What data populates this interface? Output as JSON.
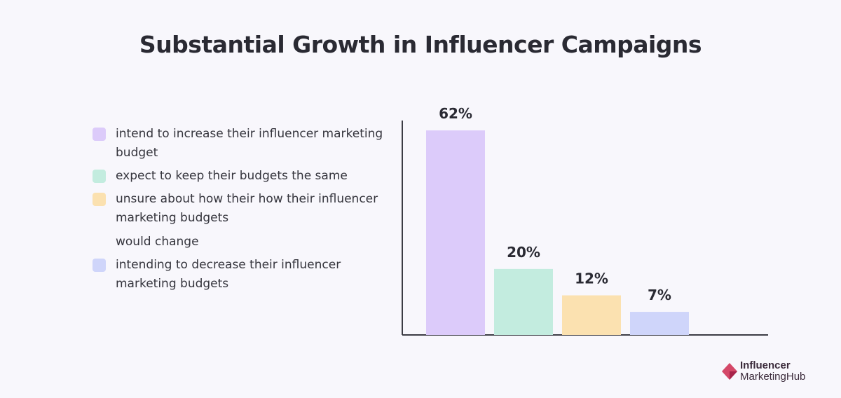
{
  "chart_data": {
    "type": "bar",
    "title": "Substantial Growth in Influencer Campaigns",
    "categories": [
      "intend to increase their influencer marketing budget",
      "expect to keep their budgets the same",
      "unsure about how their how their influencer marketing budgets would change",
      "intending to decrease their influencer marketing budgets"
    ],
    "values": [
      62,
      20,
      12,
      7
    ],
    "value_labels": [
      "62%",
      "20%",
      "12%",
      "7%"
    ],
    "colors": [
      "#dccbfa",
      "#c3ecdf",
      "#fbe1b0",
      "#cfd5fa"
    ],
    "ylim": [
      0,
      65
    ],
    "grid": false,
    "legend_placement": "left"
  },
  "legend": {
    "items": [
      {
        "lines": [
          "intend to increase their influencer marketing",
          "budget"
        ],
        "color": "#dccbfa"
      },
      {
        "lines": [
          "expect to keep their budgets the same"
        ],
        "color": "#c3ecdf"
      },
      {
        "lines": [
          "unsure about how their how their influencer",
          "marketing budgets",
          "would change"
        ],
        "color": "#fbe1b0"
      },
      {
        "lines": [
          "intending to decrease their influencer",
          "marketing budgets"
        ],
        "color": "#cfd5fa"
      }
    ]
  },
  "logo": {
    "line1": "Influencer",
    "line2": "MarketingHub",
    "icon": "influencer-marketinghub-logo-icon"
  }
}
